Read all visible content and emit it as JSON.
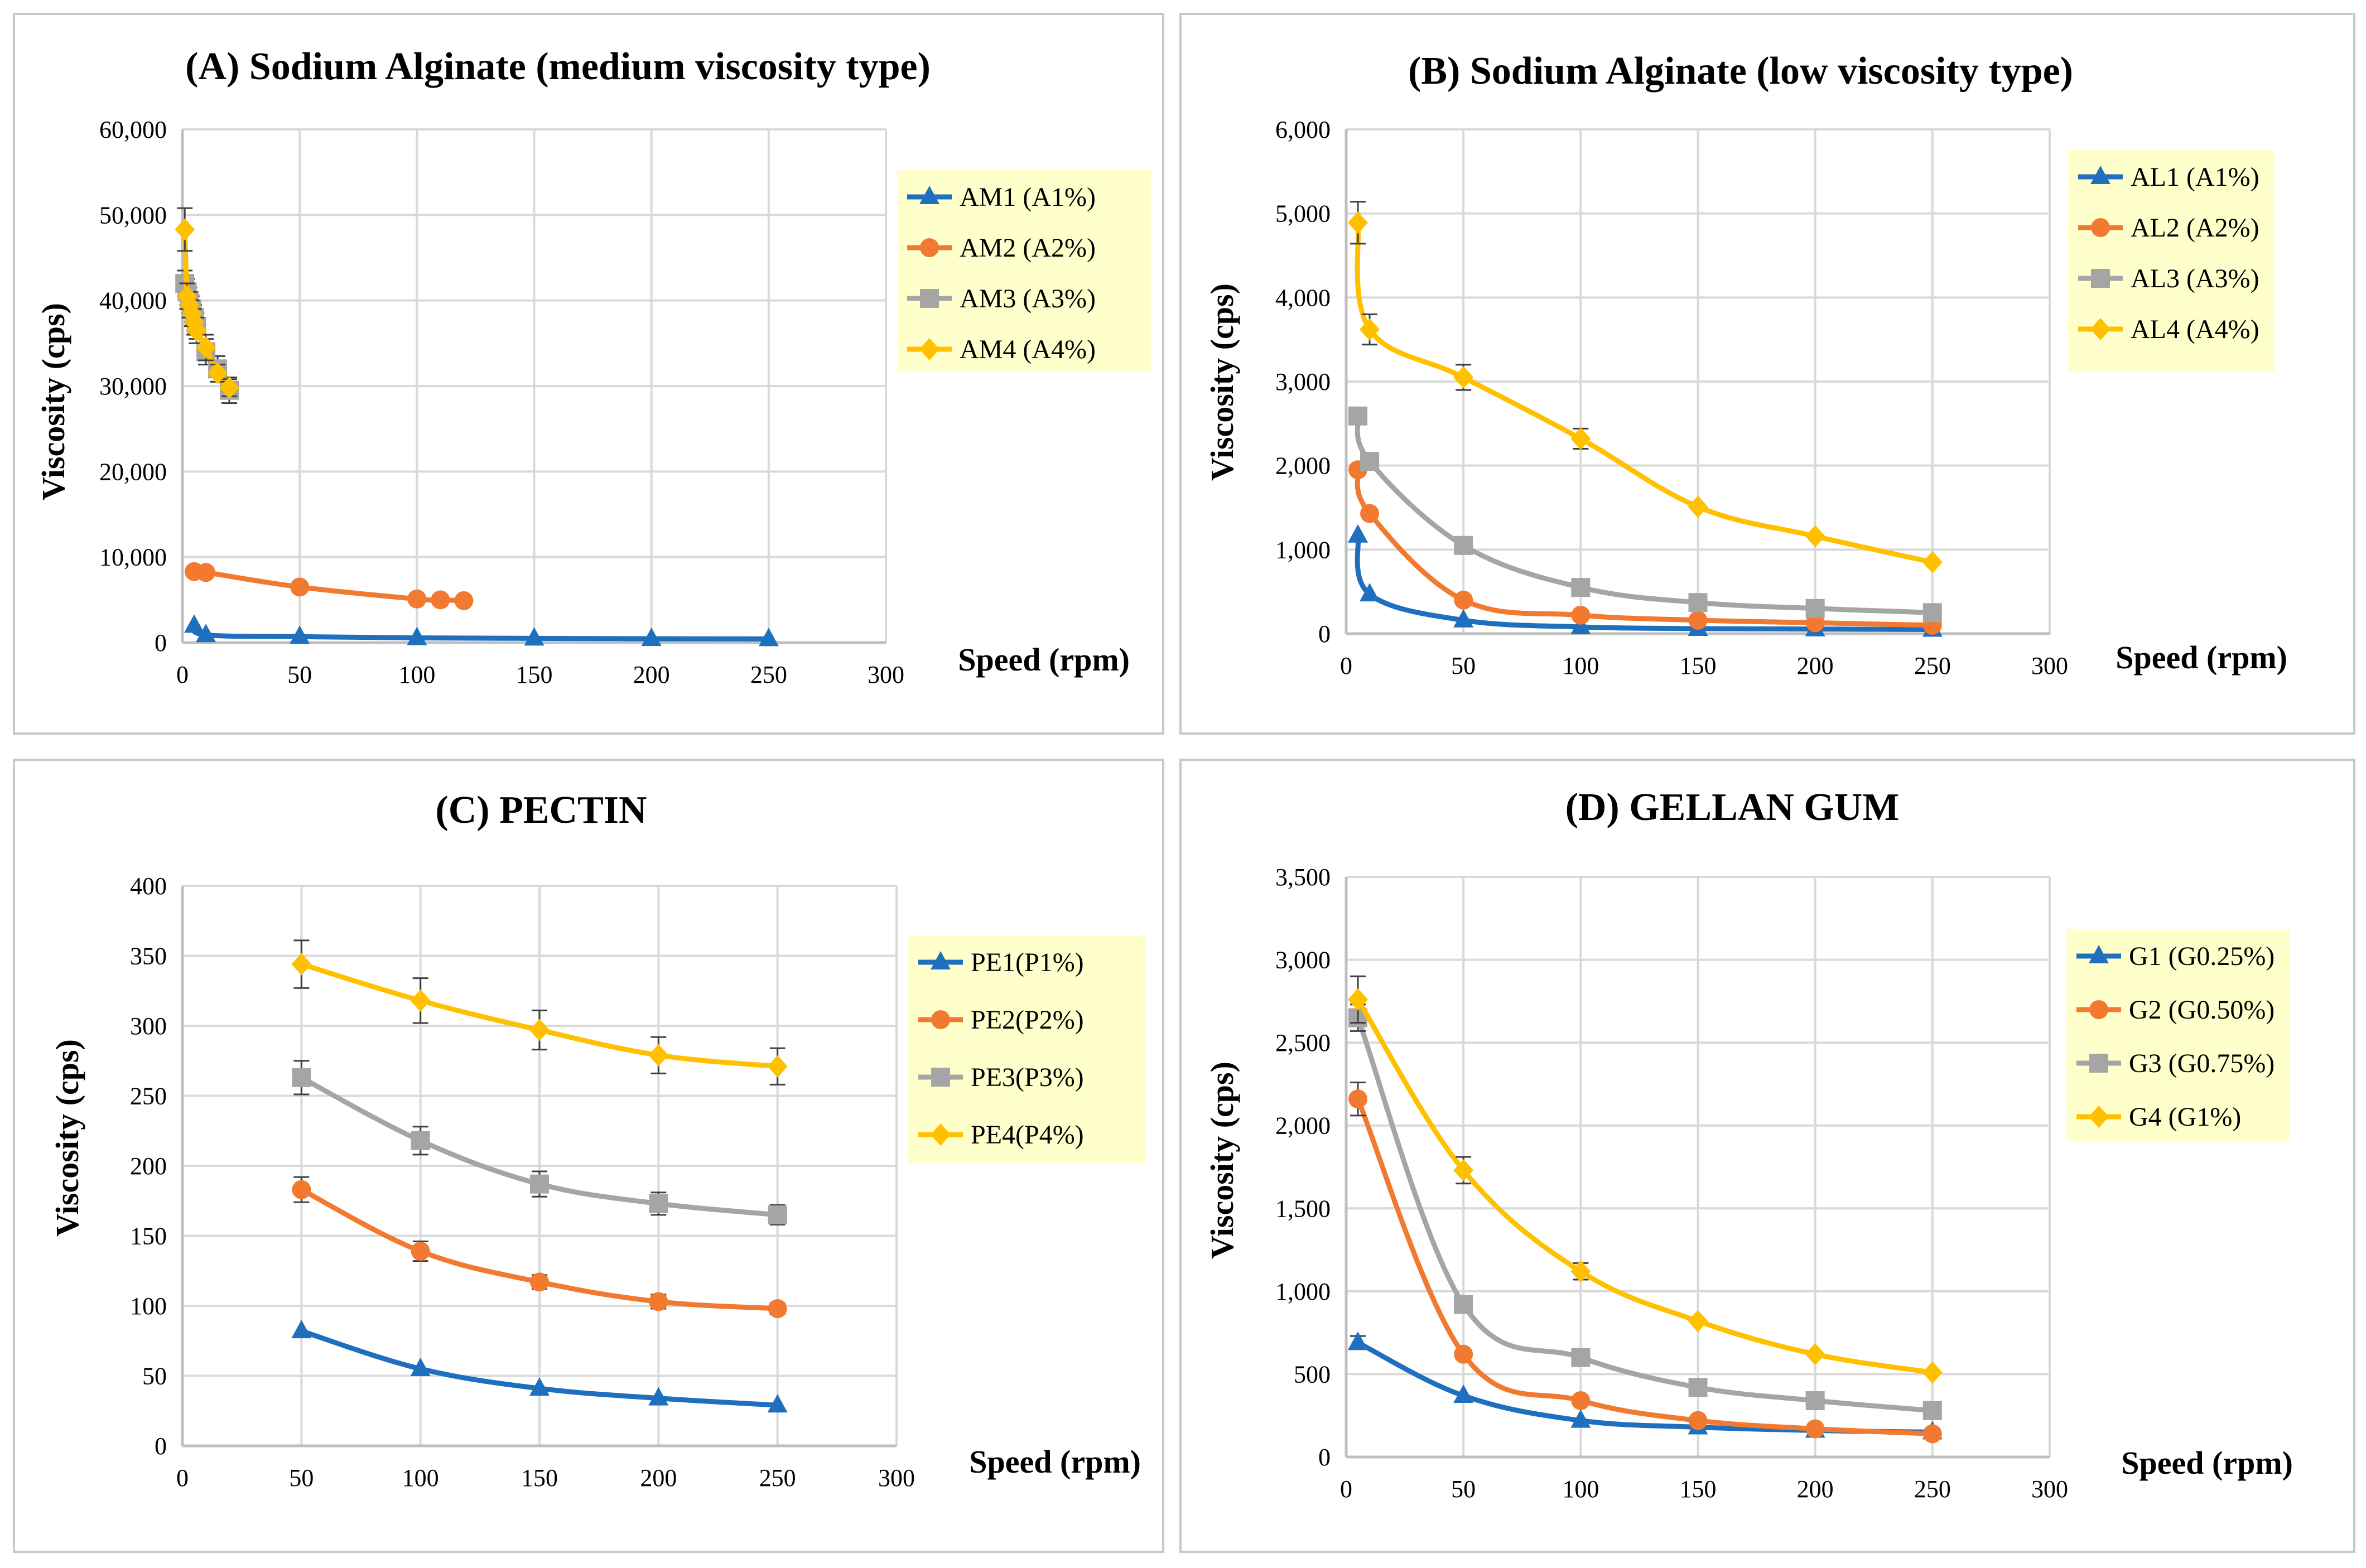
{
  "figure": {
    "colors": {
      "blue": "#1f6fbf",
      "orange": "#f27a30",
      "gray": "#a5a5a5",
      "yellow": "#ffc000",
      "legend_bg": "#ffffcc",
      "grid": "#d9d9d9",
      "frame": "#c8c8c8"
    }
  },
  "chart_data": [
    {
      "id": "A",
      "type": "line",
      "title": "(A) Sodium Alginate (medium viscosity type)",
      "xlabel": "Speed (rpm)",
      "ylabel": "Viscosity (cps)",
      "xlim": [
        0,
        300
      ],
      "ylim": [
        0,
        60000
      ],
      "xticks": [
        0,
        50,
        100,
        150,
        200,
        250,
        300
      ],
      "xtick_labels": [
        "0",
        "50",
        "100",
        "150",
        "200",
        "250",
        "300"
      ],
      "yticks": [
        0,
        10000,
        20000,
        30000,
        40000,
        50000,
        60000
      ],
      "ytick_labels": [
        "0",
        "10,000",
        "20,000",
        "30,000",
        "40,000",
        "50,000",
        "60,000"
      ],
      "legend": "right",
      "series": [
        {
          "name": "AM1 (A1%)",
          "color": "blue",
          "marker": "triangle",
          "x": [
            5,
            10,
            50,
            100,
            150,
            200,
            250
          ],
          "y": [
            2000,
            900,
            700,
            550,
            500,
            450,
            430
          ],
          "err": [
            0,
            0,
            0,
            0,
            0,
            0,
            0
          ]
        },
        {
          "name": "AM2 (A2%)",
          "color": "orange",
          "marker": "circle",
          "x": [
            5,
            10,
            50,
            100,
            110,
            120
          ],
          "y": [
            8300,
            8200,
            6500,
            5100,
            5000,
            4900
          ],
          "err": [
            0,
            0,
            0,
            0,
            0,
            0
          ]
        },
        {
          "name": "AM3 (A3%)",
          "color": "gray",
          "marker": "square",
          "x": [
            1,
            2,
            3,
            4,
            5,
            6,
            10,
            15,
            20
          ],
          "y": [
            42000,
            41000,
            40000,
            39000,
            38000,
            37000,
            34000,
            32000,
            29500
          ],
          "err": [
            1500,
            1500,
            1500,
            1500,
            1500,
            1500,
            1500,
            1500,
            1500
          ]
        },
        {
          "name": "AM4 (A4%)",
          "color": "yellow",
          "marker": "diamond",
          "x": [
            1,
            2,
            3,
            4,
            5,
            6,
            10,
            15,
            20
          ],
          "y": [
            48300,
            40500,
            39500,
            38500,
            37500,
            36500,
            34500,
            31500,
            29800
          ],
          "err": [
            2500,
            1500,
            1500,
            1500,
            1500,
            1500,
            1500,
            1000,
            1000
          ]
        }
      ]
    },
    {
      "id": "B",
      "type": "line",
      "title": "(B) Sodium Alginate (low viscosity type)",
      "xlabel": "Speed (rpm)",
      "ylabel": "Viscosity (cps)",
      "xlim": [
        0,
        300
      ],
      "ylim": [
        0,
        6000
      ],
      "xticks": [
        0,
        50,
        100,
        150,
        200,
        250,
        300
      ],
      "xtick_labels": [
        "0",
        "50",
        "100",
        "150",
        "200",
        "250",
        "300"
      ],
      "yticks": [
        0,
        1000,
        2000,
        3000,
        4000,
        5000,
        6000
      ],
      "ytick_labels": [
        "0",
        "1,000",
        "2,000",
        "3,000",
        "4,000",
        "5,000",
        "6,000"
      ],
      "legend": "right",
      "series": [
        {
          "name": "AL1 (A1%)",
          "color": "blue",
          "marker": "triangle",
          "x": [
            5,
            10,
            50,
            100,
            150,
            200,
            250
          ],
          "y": [
            1170,
            470,
            160,
            80,
            60,
            55,
            50
          ],
          "err": [
            0,
            0,
            0,
            0,
            0,
            0,
            0
          ]
        },
        {
          "name": "AL2 (A2%)",
          "color": "orange",
          "marker": "circle",
          "x": [
            5,
            10,
            50,
            100,
            150,
            200,
            250
          ],
          "y": [
            1950,
            1430,
            400,
            220,
            160,
            130,
            100
          ],
          "err": [
            0,
            0,
            0,
            0,
            0,
            0,
            0
          ]
        },
        {
          "name": "AL3 (A3%)",
          "color": "gray",
          "marker": "square",
          "x": [
            5,
            10,
            50,
            100,
            150,
            200,
            250
          ],
          "y": [
            2590,
            2050,
            1050,
            550,
            370,
            300,
            250
          ],
          "err": [
            0,
            0,
            0,
            0,
            0,
            0,
            0
          ]
        },
        {
          "name": "AL4 (A4%)",
          "color": "yellow",
          "marker": "diamond",
          "x": [
            5,
            10,
            50,
            100,
            150,
            200,
            250
          ],
          "y": [
            4890,
            3620,
            3050,
            2320,
            1510,
            1160,
            850
          ],
          "err": [
            250,
            180,
            150,
            120,
            0,
            0,
            0
          ]
        }
      ]
    },
    {
      "id": "C",
      "type": "line",
      "title": "(C) PECTIN",
      "xlabel": "Speed (rpm)",
      "ylabel": "Viscosity (cps)",
      "xlim": [
        0,
        300
      ],
      "ylim": [
        0,
        400
      ],
      "xticks": [
        0,
        50,
        100,
        150,
        200,
        250,
        300
      ],
      "xtick_labels": [
        "0",
        "50",
        "100",
        "150",
        "200",
        "250",
        "300"
      ],
      "yticks": [
        0,
        50,
        100,
        150,
        200,
        250,
        300,
        350,
        400
      ],
      "ytick_labels": [
        "0",
        "50",
        "100",
        "150",
        "200",
        "250",
        "300",
        "350",
        "400"
      ],
      "legend": "right",
      "series": [
        {
          "name": "PE1(P1%)",
          "color": "blue",
          "marker": "triangle",
          "x": [
            50,
            100,
            150,
            200,
            250
          ],
          "y": [
            82,
            55,
            41,
            34,
            29
          ],
          "err": [
            0,
            0,
            0,
            0,
            0
          ]
        },
        {
          "name": "PE2(P2%)",
          "color": "orange",
          "marker": "circle",
          "x": [
            50,
            100,
            150,
            200,
            250
          ],
          "y": [
            183,
            139,
            117,
            103,
            98
          ],
          "err": [
            9,
            7,
            5,
            5,
            4
          ]
        },
        {
          "name": "PE3(P3%)",
          "color": "gray",
          "marker": "square",
          "x": [
            50,
            100,
            150,
            200,
            250
          ],
          "y": [
            263,
            218,
            187,
            173,
            165
          ],
          "err": [
            12,
            10,
            9,
            8,
            7
          ]
        },
        {
          "name": "PE4(P4%)",
          "color": "yellow",
          "marker": "diamond",
          "x": [
            50,
            100,
            150,
            200,
            250
          ],
          "y": [
            344,
            318,
            297,
            279,
            271
          ],
          "err": [
            17,
            16,
            14,
            13,
            13
          ]
        }
      ]
    },
    {
      "id": "D",
      "type": "line",
      "title": "(D) GELLAN GUM",
      "xlabel": "Speed (rpm)",
      "ylabel": "Viscosity (cps)",
      "xlim": [
        0,
        300
      ],
      "ylim": [
        0,
        3500
      ],
      "xticks": [
        0,
        50,
        100,
        150,
        200,
        250,
        300
      ],
      "xtick_labels": [
        "0",
        "50",
        "100",
        "150",
        "200",
        "250",
        "300"
      ],
      "yticks": [
        0,
        500,
        1000,
        1500,
        2000,
        2500,
        3000,
        3500
      ],
      "ytick_labels": [
        "0",
        "500",
        "1,000",
        "1,500",
        "2,000",
        "2,500",
        "3,000",
        "3,500"
      ],
      "legend": "right",
      "series": [
        {
          "name": "G1 (G0.25%)",
          "color": "blue",
          "marker": "triangle",
          "x": [
            5,
            50,
            100,
            150,
            200,
            250
          ],
          "y": [
            690,
            370,
            220,
            180,
            160,
            150
          ],
          "err": [
            40,
            0,
            0,
            0,
            0,
            0
          ]
        },
        {
          "name": "G2 (G0.50%)",
          "color": "orange",
          "marker": "circle",
          "x": [
            5,
            50,
            100,
            150,
            200,
            250
          ],
          "y": [
            2160,
            620,
            340,
            220,
            170,
            140
          ],
          "err": [
            100,
            0,
            0,
            0,
            0,
            0
          ]
        },
        {
          "name": "G3 (G0.75%)",
          "color": "gray",
          "marker": "square",
          "x": [
            5,
            50,
            100,
            150,
            200,
            250
          ],
          "y": [
            2650,
            920,
            600,
            420,
            340,
            280
          ],
          "err": [
            80,
            0,
            0,
            0,
            0,
            0
          ]
        },
        {
          "name": "G4 (G1%)",
          "color": "yellow",
          "marker": "diamond",
          "x": [
            5,
            50,
            100,
            150,
            200,
            250
          ],
          "y": [
            2760,
            1730,
            1120,
            820,
            620,
            510
          ],
          "err": [
            140,
            80,
            50,
            0,
            0,
            0
          ]
        }
      ]
    }
  ]
}
